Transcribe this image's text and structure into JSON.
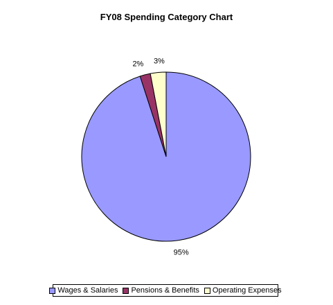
{
  "chart_data": {
    "type": "pie",
    "title": "FY08 Spending Category Chart",
    "categories": [
      "Wages & Salaries",
      "Pensions & Benefits",
      "Operating Expenses"
    ],
    "values": [
      95,
      2,
      3
    ],
    "labels": [
      "95%",
      "2%",
      "3%"
    ],
    "colors": [
      "#9999ff",
      "#993366",
      "#ffffcc"
    ],
    "legend_position": "bottom"
  }
}
